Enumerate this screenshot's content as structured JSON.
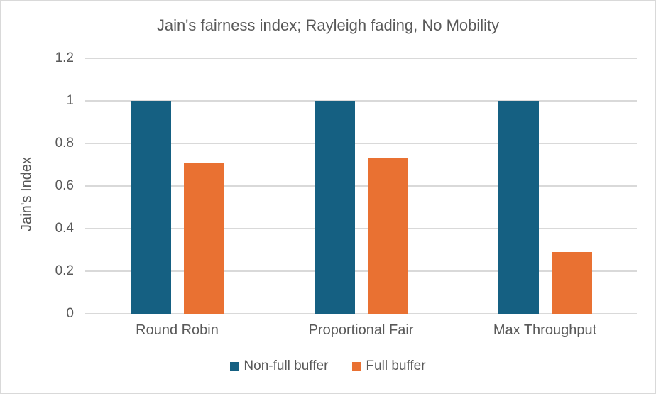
{
  "chart_data": {
    "type": "bar",
    "title": "Jain's fairness index; Rayleigh fading, No Mobility",
    "ylabel": "Jain's Index",
    "xlabel": "",
    "categories": [
      "Round Robin",
      "Proportional Fair",
      "Max Throughput"
    ],
    "series": [
      {
        "name": "Non-full buffer",
        "color": "#156082",
        "values": [
          1.0,
          1.0,
          1.0
        ]
      },
      {
        "name": "Full buffer",
        "color": "#E97132",
        "values": [
          0.71,
          0.73,
          0.29
        ]
      }
    ],
    "ylim": [
      0,
      1.2
    ],
    "yticks": [
      0,
      0.2,
      0.4,
      0.6,
      0.8,
      1,
      1.2
    ],
    "ytick_labels": [
      "0",
      "0.2",
      "0.4",
      "0.6",
      "0.8",
      "1",
      "1.2"
    ],
    "grid": true,
    "legend_position": "bottom",
    "colors": {
      "gridline": "#d9d9d9",
      "axis_line": "#d9d9d9",
      "text": "#595959",
      "background": "#ffffff",
      "frame_border": "#d9d9d9"
    }
  }
}
